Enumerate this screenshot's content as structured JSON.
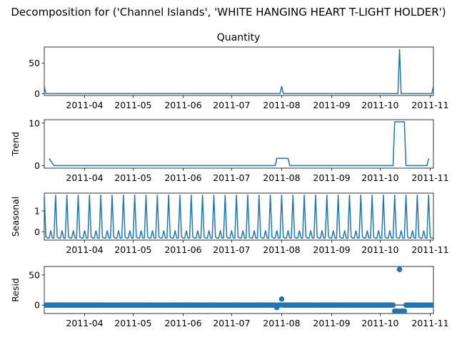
{
  "chart_data": {
    "type": "line",
    "suptitle": "Decomposition for ('Channel Islands', 'WHITE HANGING HEART T-LIGHT HOLDER')",
    "x_start": "2011-03-07",
    "x_end": "2011-11-03",
    "x_ticks": [
      "2011-04",
      "2011-05",
      "2011-06",
      "2011-07",
      "2011-08",
      "2011-09",
      "2011-10",
      "2011-11"
    ],
    "line_color": "#1f77b4",
    "panels": [
      {
        "id": "observed",
        "title": "Quantity",
        "ylabel": "",
        "style": "line",
        "ylim": [
          -3,
          76
        ],
        "yticks": [
          0,
          50
        ],
        "series": {
          "baseline": 0,
          "points": [
            {
              "date": "2011-03-07",
              "value": 12
            },
            {
              "date": "2011-03-08",
              "value": 0
            },
            {
              "date": "2011-07-31",
              "value": 0
            },
            {
              "date": "2011-08-01",
              "value": 12
            },
            {
              "date": "2011-08-02",
              "value": 0
            },
            {
              "date": "2011-10-12",
              "value": 0
            },
            {
              "date": "2011-10-13",
              "value": 72
            },
            {
              "date": "2011-10-14",
              "value": 0
            },
            {
              "date": "2011-11-02",
              "value": 0
            },
            {
              "date": "2011-11-03",
              "value": 12
            }
          ]
        }
      },
      {
        "id": "trend",
        "title": "",
        "ylabel": "Trend",
        "style": "line",
        "ylim": [
          -0.6,
          10.8
        ],
        "yticks": [
          0,
          10
        ],
        "series": {
          "points": [
            {
              "date": "2011-03-10",
              "value": 1.7
            },
            {
              "date": "2011-03-13",
              "value": 0
            },
            {
              "date": "2011-07-28",
              "value": 0
            },
            {
              "date": "2011-07-29",
              "value": 1.7
            },
            {
              "date": "2011-08-05",
              "value": 1.7
            },
            {
              "date": "2011-08-06",
              "value": 0
            },
            {
              "date": "2011-10-09",
              "value": 0
            },
            {
              "date": "2011-10-10",
              "value": 10.3
            },
            {
              "date": "2011-10-16",
              "value": 10.3
            },
            {
              "date": "2011-10-17",
              "value": 0
            },
            {
              "date": "2011-10-30",
              "value": 0
            },
            {
              "date": "2011-10-31",
              "value": 1.7
            }
          ]
        }
      },
      {
        "id": "seasonal",
        "title": "",
        "ylabel": "Seasonal",
        "style": "line",
        "ylim": [
          -0.4,
          1.85
        ],
        "yticks": [
          0,
          1
        ],
        "series": {
          "weekly_pattern": [
            1.75,
            -0.25,
            -0.3,
            -0.3,
            0.05,
            -0.3,
            -0.3
          ]
        }
      },
      {
        "id": "resid",
        "title": "",
        "ylabel": "Resid",
        "style": "scatter",
        "ylim": [
          -14,
          64
        ],
        "yticks": [
          0,
          50
        ],
        "series": {
          "default": 0,
          "points": [
            {
              "date": "2011-07-29",
              "value": -4
            },
            {
              "date": "2011-08-01",
              "value": 10
            },
            {
              "date": "2011-10-10",
              "value": -10
            },
            {
              "date": "2011-10-11",
              "value": -10
            },
            {
              "date": "2011-10-12",
              "value": -10
            },
            {
              "date": "2011-10-13",
              "value": 59
            },
            {
              "date": "2011-10-14",
              "value": -10
            },
            {
              "date": "2011-10-15",
              "value": -10
            },
            {
              "date": "2011-10-16",
              "value": -10
            }
          ]
        }
      }
    ]
  }
}
